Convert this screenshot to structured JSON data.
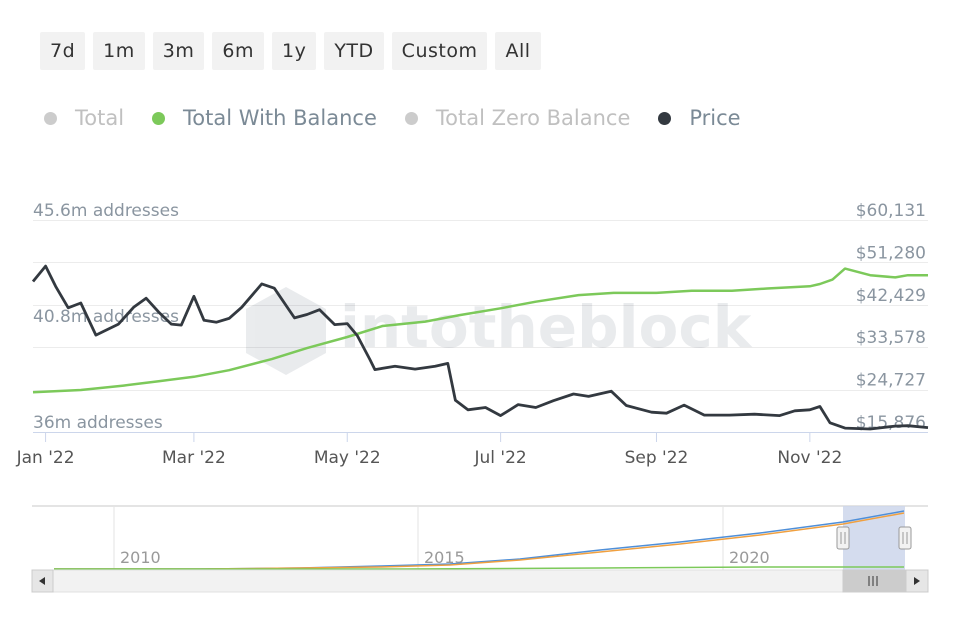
{
  "range_buttons": [
    "7d",
    "1m",
    "3m",
    "6m",
    "1y",
    "YTD",
    "Custom",
    "All"
  ],
  "legend": [
    {
      "label": "Total",
      "dot_color": "#cccccc",
      "text_color": "#c0c0c0"
    },
    {
      "label": "Total With Balance",
      "dot_color": "#7cc95a",
      "text_color": "#7b8a96"
    },
    {
      "label": "Total Zero Balance",
      "dot_color": "#cccccc",
      "text_color": "#c0c0c0"
    },
    {
      "label": "Price",
      "dot_color": "#333940",
      "text_color": "#7b8a96"
    }
  ],
  "watermark": "intotheblock",
  "navigator": {
    "years": [
      "2010",
      "2015",
      "2020"
    ]
  },
  "chart_data": {
    "type": "line",
    "title": "",
    "x_ticks": [
      "Jan '22",
      "Mar '22",
      "May '22",
      "Jul '22",
      "Sep '22",
      "Nov '22"
    ],
    "y_left_ticks": [
      "36m addresses",
      "40.8m addresses",
      "45.6m addresses"
    ],
    "y_left_range": [
      36.0,
      45.6
    ],
    "y_right_ticks": [
      "$15,876",
      "$24,727",
      "$33,578",
      "$42,429",
      "$51,280",
      "$60,131"
    ],
    "y_right_range": [
      15876,
      60131
    ],
    "series": [
      {
        "name": "Total With Balance",
        "axis": "left",
        "color": "#7cc95a",
        "x": [
          "2021-12-27",
          "2022-01-15",
          "2022-02-01",
          "2022-02-15",
          "2022-03-01",
          "2022-03-15",
          "2022-04-01",
          "2022-04-15",
          "2022-05-01",
          "2022-05-15",
          "2022-06-01",
          "2022-06-15",
          "2022-07-01",
          "2022-07-15",
          "2022-08-01",
          "2022-08-15",
          "2022-09-01",
          "2022-09-15",
          "2022-10-01",
          "2022-10-15",
          "2022-11-01",
          "2022-11-05",
          "2022-11-10",
          "2022-11-15",
          "2022-11-25",
          "2022-12-05",
          "2022-12-10",
          "2022-12-18"
        ],
        "values": [
          37.8,
          37.9,
          38.1,
          38.3,
          38.5,
          38.8,
          39.3,
          39.8,
          40.3,
          40.8,
          41.0,
          41.3,
          41.6,
          41.9,
          42.2,
          42.3,
          42.3,
          42.4,
          42.4,
          42.5,
          42.6,
          42.7,
          42.9,
          43.4,
          43.1,
          43.0,
          43.1,
          43.1
        ]
      },
      {
        "name": "Price",
        "axis": "right",
        "color": "#333940",
        "x": [
          "2021-12-27",
          "2022-01-01",
          "2022-01-05",
          "2022-01-10",
          "2022-01-15",
          "2022-01-21",
          "2022-01-25",
          "2022-01-30",
          "2022-02-05",
          "2022-02-10",
          "2022-02-15",
          "2022-02-20",
          "2022-02-24",
          "2022-03-01",
          "2022-03-05",
          "2022-03-10",
          "2022-03-15",
          "2022-03-20",
          "2022-03-28",
          "2022-04-02",
          "2022-04-10",
          "2022-04-15",
          "2022-04-20",
          "2022-04-26",
          "2022-05-01",
          "2022-05-05",
          "2022-05-10",
          "2022-05-12",
          "2022-05-20",
          "2022-05-28",
          "2022-06-05",
          "2022-06-10",
          "2022-06-13",
          "2022-06-18",
          "2022-06-25",
          "2022-07-01",
          "2022-07-08",
          "2022-07-15",
          "2022-07-22",
          "2022-07-30",
          "2022-08-05",
          "2022-08-14",
          "2022-08-20",
          "2022-08-30",
          "2022-09-05",
          "2022-09-12",
          "2022-09-20",
          "2022-09-30",
          "2022-10-10",
          "2022-10-20",
          "2022-10-26",
          "2022-11-01",
          "2022-11-05",
          "2022-11-09",
          "2022-11-15",
          "2022-11-25",
          "2022-12-05",
          "2022-12-10",
          "2022-12-18"
        ],
        "values": [
          47300,
          50500,
          46300,
          41800,
          42800,
          36100,
          37100,
          38400,
          41900,
          43800,
          40900,
          38400,
          38200,
          44200,
          39200,
          38800,
          39600,
          41900,
          46800,
          45900,
          39700,
          40400,
          41400,
          38300,
          38500,
          36000,
          31000,
          28900,
          29600,
          29000,
          29600,
          30200,
          22500,
          20500,
          21000,
          19300,
          21600,
          21000,
          22400,
          23800,
          23300,
          24400,
          21400,
          20000,
          19800,
          21500,
          19400,
          19400,
          19600,
          19300,
          20300,
          20500,
          21200,
          17800,
          16700,
          16500,
          17100,
          17200,
          16800
        ]
      }
    ]
  }
}
